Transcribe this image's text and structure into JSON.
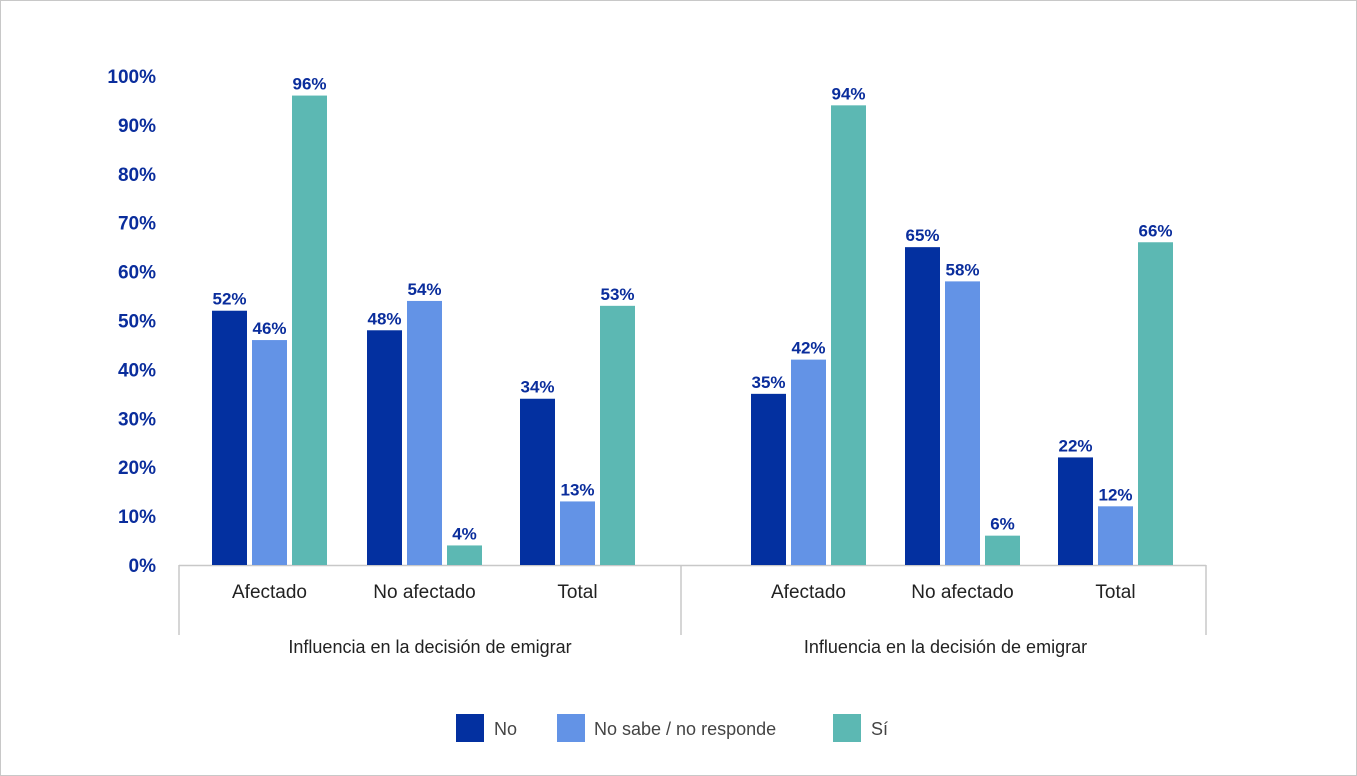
{
  "chart_data": {
    "type": "bar",
    "ylim": [
      0,
      100
    ],
    "y_ticks": [
      "0%",
      "10%",
      "20%",
      "30%",
      "40%",
      "50%",
      "60%",
      "70%",
      "80%",
      "90%",
      "100%"
    ],
    "grid": false,
    "legend_position": "bottom",
    "groups": [
      {
        "label": "Influencia en la decisión de emigrar",
        "categories": [
          "Afectado",
          "No afectado",
          "Total"
        ],
        "series": [
          {
            "name": "No",
            "values": [
              52,
              48,
              34
            ],
            "labels": [
              "52%",
              "48%",
              "34%"
            ]
          },
          {
            "name": "No sabe / no responde",
            "values": [
              46,
              54,
              13
            ],
            "labels": [
              "46%",
              "54%",
              "13%"
            ]
          },
          {
            "name": "Sí",
            "values": [
              96,
              4,
              53
            ],
            "labels": [
              "96%",
              "4%",
              "53%"
            ]
          }
        ]
      },
      {
        "label": "Influencia en la decisión de emigrar",
        "categories": [
          "Afectado",
          "No afectado",
          "Total"
        ],
        "series": [
          {
            "name": "No",
            "values": [
              35,
              65,
              22
            ],
            "labels": [
              "35%",
              "65%",
              "22%"
            ]
          },
          {
            "name": "No sabe / no responde",
            "values": [
              42,
              58,
              12
            ],
            "labels": [
              "42%",
              "58%",
              "12%"
            ]
          },
          {
            "name": "Sí",
            "values": [
              94,
              6,
              66
            ],
            "labels": [
              "94%",
              "6%",
              "66%"
            ]
          }
        ]
      }
    ],
    "legend": [
      {
        "name": "No",
        "color": "#0330a0"
      },
      {
        "name": "No sabe / no responde",
        "color": "#6393e6"
      },
      {
        "name": "Sí",
        "color": "#5cb8b3"
      }
    ],
    "colors": {
      "label_text": "#0a2d9c",
      "axis_line": "#c8c8c8"
    }
  }
}
